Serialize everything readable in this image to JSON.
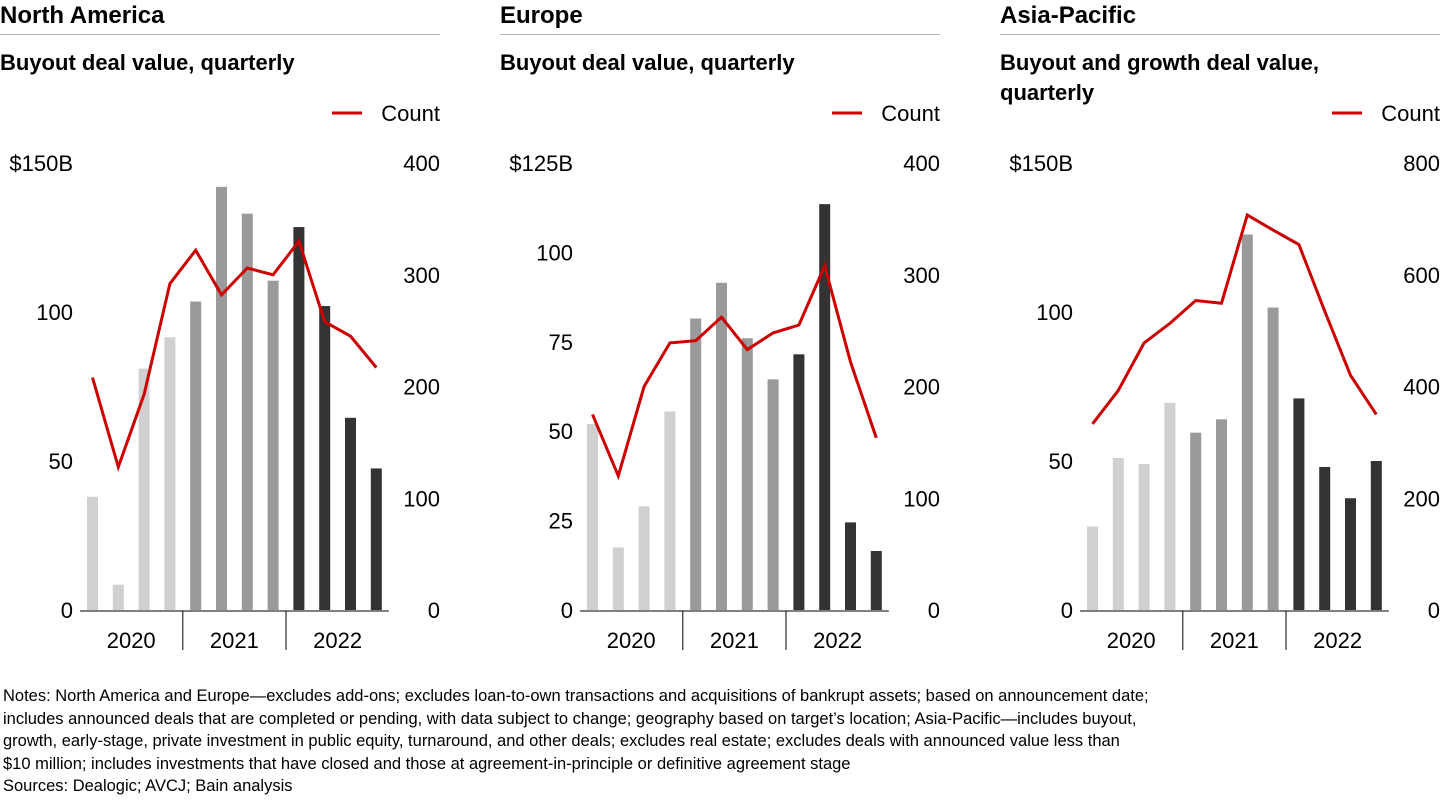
{
  "notes": [
    "Notes: North America and Europe—excludes add-ons; excludes loan-to-own transactions and acquisitions of bankrupt assets; based on announcement date;",
    "includes announced deals that are completed or pending, with data subject to change; geography based on target’s location; Asia-Pacific—includes buyout,",
    "growth, early-stage, private investment in public equity, turnaround, and other deals; excludes real estate; excludes deals with announced value less than",
    "$10 million; includes investments that have closed and those at agreement-in-principle or definitive agreement stage"
  ],
  "sources": "Sources: Dealogic; AVCJ; Bain analysis",
  "colors": {
    "year_2020": "#d0d0d0",
    "year_2021": "#9a9a9a",
    "year_2022": "#333333",
    "count_line": "#cc0000"
  },
  "chart_data": [
    {
      "type": "bar",
      "title": "North America",
      "subtitle": [
        "Buyout deal value, quarterly"
      ],
      "legend": "Count",
      "legend_position": "top-right",
      "categories": [
        "Q1 2020",
        "Q2 2020",
        "Q3 2020",
        "Q4 2020",
        "Q1 2021",
        "Q2 2021",
        "Q3 2021",
        "Q4 2021",
        "Q1 2022",
        "Q2 2022",
        "Q3 2022",
        "Q4 2022"
      ],
      "groups": [
        "2020",
        "2021",
        "2022"
      ],
      "series": [
        {
          "values": [
            38,
            8.5,
            81,
            91.5,
            103.5,
            142,
            133,
            110.5,
            128.5,
            102,
            64.5,
            47.5
          ]
        },
        {
          "name": "Count",
          "axis": "right",
          "values": [
            208,
            128,
            193,
            292,
            322,
            282,
            306,
            300,
            330,
            258,
            245,
            217
          ]
        }
      ],
      "y_left_ticks": [
        "0",
        "50",
        "100",
        "$150B"
      ],
      "y_left_lim": [
        0,
        150
      ],
      "y_right_ticks": [
        "0",
        "100",
        "200",
        "300",
        "400"
      ],
      "y_right_lim": [
        0,
        400
      ]
    },
    {
      "type": "bar",
      "title": "Europe",
      "subtitle": [
        "Buyout deal value, quarterly"
      ],
      "legend": "Count",
      "legend_position": "top-right",
      "categories": [
        "Q1 2020",
        "Q2 2020",
        "Q3 2020",
        "Q4 2020",
        "Q1 2021",
        "Q2 2021",
        "Q3 2021",
        "Q4 2021",
        "Q1 2022",
        "Q2 2022",
        "Q3 2022",
        "Q4 2022"
      ],
      "groups": [
        "2020",
        "2021",
        "2022"
      ],
      "series": [
        {
          "values": [
            52,
            17.5,
            29,
            55.5,
            81.5,
            91.5,
            76,
            64.5,
            71.5,
            113.5,
            24.5,
            16.5
          ]
        },
        {
          "name": "Count",
          "axis": "right",
          "values": [
            175,
            120,
            200,
            239,
            241,
            262,
            233,
            248,
            255,
            308,
            222,
            154
          ]
        }
      ],
      "y_left_ticks": [
        "0",
        "25",
        "50",
        "75",
        "100",
        "$125B"
      ],
      "y_left_lim": [
        0,
        125
      ],
      "y_right_ticks": [
        "0",
        "100",
        "200",
        "300",
        "400"
      ],
      "y_right_lim": [
        0,
        400
      ]
    },
    {
      "type": "bar",
      "title": "Asia-Pacific",
      "subtitle": [
        "Buyout and growth deal value,",
        "quarterly"
      ],
      "legend": "Count",
      "legend_position": "top-right",
      "categories": [
        "Q1 2020",
        "Q2 2020",
        "Q3 2020",
        "Q4 2020",
        "Q1 2021",
        "Q2 2021",
        "Q3 2021",
        "Q4 2021",
        "Q1 2022",
        "Q2 2022",
        "Q3 2022",
        "Q4 2022"
      ],
      "groups": [
        "2020",
        "2021",
        "2022"
      ],
      "series": [
        {
          "values": [
            28,
            51,
            49,
            69.5,
            59.5,
            64,
            126,
            101.5,
            71,
            48,
            37.5,
            50
          ]
        },
        {
          "name": "Count",
          "axis": "right",
          "values": [
            333,
            393,
            478,
            513,
            554,
            549,
            707,
            680,
            654,
            535,
            420,
            350
          ]
        }
      ],
      "y_left_ticks": [
        "0",
        "50",
        "100",
        "$150B"
      ],
      "y_left_lim": [
        0,
        150
      ],
      "y_right_ticks": [
        "0",
        "200",
        "400",
        "600",
        "800"
      ],
      "y_right_lim": [
        0,
        800
      ]
    }
  ]
}
